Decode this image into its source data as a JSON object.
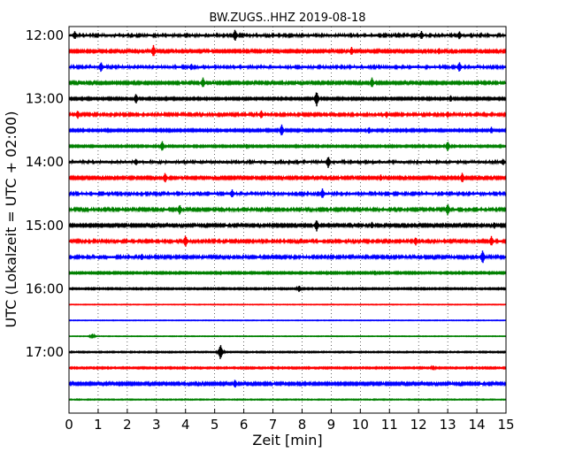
{
  "chart_data": {
    "type": "line",
    "title": "BW.ZUGS..HHZ 2019-08-18",
    "xlabel": "Zeit  [min]",
    "ylabel": "UTC (Lokalzeit = UTC + 02:00)",
    "xlim": [
      0,
      15
    ],
    "x_ticks": [
      "0",
      "1",
      "2",
      "3",
      "4",
      "5",
      "6",
      "7",
      "8",
      "9",
      "10",
      "11",
      "12",
      "13",
      "14",
      "15"
    ],
    "y_ticks": [
      {
        "label": "12:00",
        "trace": 0
      },
      {
        "label": "13:00",
        "trace": 4
      },
      {
        "label": "14:00",
        "trace": 8
      },
      {
        "label": "15:00",
        "trace": 12
      },
      {
        "label": "16:00",
        "trace": 16
      },
      {
        "label": "17:00",
        "trace": 20
      }
    ],
    "grid": "vertical dotted",
    "trace_colors": [
      "#000000",
      "#ff0000",
      "#0000ff",
      "#008000"
    ],
    "series": [
      {
        "start": "12:00",
        "noise": 1.0,
        "events": [
          [
            0.2,
            5
          ],
          [
            5.7,
            7
          ],
          [
            12.1,
            5
          ],
          [
            13.4,
            5
          ]
        ]
      },
      {
        "start": "12:15",
        "noise": 0.8,
        "events": [
          [
            2.9,
            7
          ],
          [
            9.7,
            5
          ],
          [
            12.7,
            4
          ]
        ]
      },
      {
        "start": "12:30",
        "noise": 1.0,
        "events": [
          [
            1.1,
            6
          ],
          [
            4.2,
            4
          ],
          [
            13.4,
            6
          ]
        ]
      },
      {
        "start": "12:45",
        "noise": 0.8,
        "events": [
          [
            4.6,
            6
          ],
          [
            10.4,
            6
          ]
        ]
      },
      {
        "start": "13:00",
        "noise": 0.7,
        "events": [
          [
            2.3,
            6
          ],
          [
            8.5,
            9
          ],
          [
            13.1,
            4
          ]
        ]
      },
      {
        "start": "13:15",
        "noise": 0.9,
        "events": [
          [
            0.3,
            5
          ],
          [
            6.6,
            5
          ],
          [
            10.9,
            4
          ],
          [
            13.0,
            4
          ]
        ]
      },
      {
        "start": "13:30",
        "noise": 0.7,
        "events": [
          [
            7.3,
            7
          ],
          [
            10.3,
            4
          ],
          [
            14.5,
            4
          ]
        ]
      },
      {
        "start": "13:45",
        "noise": 0.6,
        "events": [
          [
            3.2,
            6
          ],
          [
            6.1,
            3
          ],
          [
            13.0,
            6
          ]
        ]
      },
      {
        "start": "14:00",
        "noise": 1.1,
        "events": [
          [
            2.3,
            4
          ],
          [
            8.9,
            7
          ],
          [
            14.9,
            4
          ]
        ]
      },
      {
        "start": "14:15",
        "noise": 0.8,
        "events": [
          [
            3.3,
            6
          ],
          [
            10.7,
            4
          ],
          [
            13.5,
            6
          ]
        ]
      },
      {
        "start": "14:30",
        "noise": 1.0,
        "events": [
          [
            5.6,
            5
          ],
          [
            8.7,
            6
          ],
          [
            12.8,
            3
          ]
        ]
      },
      {
        "start": "14:45",
        "noise": 0.9,
        "events": [
          [
            3.8,
            6
          ],
          [
            13.0,
            7
          ]
        ]
      },
      {
        "start": "15:00",
        "noise": 0.8,
        "events": [
          [
            8.5,
            7
          ],
          [
            10.4,
            4
          ],
          [
            14.6,
            4
          ]
        ]
      },
      {
        "start": "15:15",
        "noise": 0.9,
        "events": [
          [
            4.0,
            7
          ],
          [
            11.9,
            5
          ],
          [
            14.5,
            6
          ]
        ]
      },
      {
        "start": "15:30",
        "noise": 0.9,
        "events": [
          [
            2.5,
            4
          ],
          [
            14.2,
            8
          ]
        ]
      },
      {
        "start": "15:45",
        "noise": 0.6,
        "events": [
          [
            10.5,
            3
          ]
        ]
      },
      {
        "start": "16:00",
        "noise": 0.5,
        "events": [
          [
            7.9,
            4
          ]
        ]
      },
      {
        "start": "16:15",
        "noise": 0.2,
        "events": []
      },
      {
        "start": "16:30",
        "noise": 0.2,
        "events": []
      },
      {
        "start": "16:45",
        "noise": 0.2,
        "events": [
          [
            0.8,
            3
          ]
        ]
      },
      {
        "start": "17:00",
        "noise": 0.4,
        "events": [
          [
            5.2,
            9
          ]
        ]
      },
      {
        "start": "17:15",
        "noise": 0.5,
        "events": [
          [
            12.5,
            3
          ]
        ]
      },
      {
        "start": "17:30",
        "noise": 0.8,
        "events": [
          [
            5.7,
            5
          ]
        ]
      },
      {
        "start": "17:45",
        "noise": 0.3,
        "events": []
      }
    ]
  }
}
